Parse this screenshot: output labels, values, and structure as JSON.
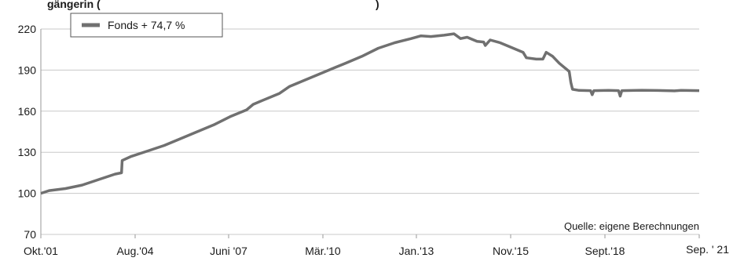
{
  "chart_data": {
    "type": "line",
    "title_partial": "gängerin (",
    "title_end": ")",
    "legend": {
      "label": "Fonds  + 74,7 %"
    },
    "source": "Quelle: eigene Berechnungen",
    "ylim": [
      70,
      220
    ],
    "y_ticks": [
      "220",
      "190",
      "160",
      "130",
      "100",
      "70"
    ],
    "x_tick_labels": [
      "Okt.'01",
      "Aug.'04",
      "Juni '07",
      "Mär.'10",
      "Jan.'13",
      "Nov.'15",
      "Sept.'18",
      "Sep. ' 21"
    ],
    "grid": true,
    "series": [
      {
        "name": "Fonds  + 74,7 %",
        "color": "#707070",
        "points": [
          [
            2001.75,
            100
          ],
          [
            2002.0,
            102
          ],
          [
            2002.5,
            103.5
          ],
          [
            2003.0,
            106
          ],
          [
            2003.5,
            110
          ],
          [
            2004.0,
            114
          ],
          [
            2004.2,
            115
          ],
          [
            2004.22,
            124
          ],
          [
            2004.5,
            127
          ],
          [
            2005.0,
            131
          ],
          [
            2005.5,
            135
          ],
          [
            2006.0,
            140
          ],
          [
            2006.5,
            145
          ],
          [
            2007.0,
            150
          ],
          [
            2007.5,
            156
          ],
          [
            2008.0,
            161
          ],
          [
            2008.2,
            165
          ],
          [
            2008.5,
            168
          ],
          [
            2009.0,
            173
          ],
          [
            2009.3,
            178
          ],
          [
            2009.7,
            182
          ],
          [
            2010.2,
            187
          ],
          [
            2010.7,
            192
          ],
          [
            2011.0,
            195
          ],
          [
            2011.5,
            200
          ],
          [
            2012.0,
            206
          ],
          [
            2012.5,
            210
          ],
          [
            2013.0,
            213
          ],
          [
            2013.3,
            215
          ],
          [
            2013.6,
            214.5
          ],
          [
            2014.0,
            215.5
          ],
          [
            2014.3,
            216.5
          ],
          [
            2014.5,
            213
          ],
          [
            2014.7,
            214
          ],
          [
            2015.0,
            211
          ],
          [
            2015.2,
            210.5
          ],
          [
            2015.25,
            208
          ],
          [
            2015.4,
            212
          ],
          [
            2015.7,
            210
          ],
          [
            2016.0,
            207
          ],
          [
            2016.4,
            203
          ],
          [
            2016.5,
            199
          ],
          [
            2016.8,
            198
          ],
          [
            2017.0,
            198
          ],
          [
            2017.1,
            203
          ],
          [
            2017.3,
            200
          ],
          [
            2017.5,
            195
          ],
          [
            2017.6,
            193
          ],
          [
            2017.8,
            189
          ],
          [
            2017.85,
            181
          ],
          [
            2017.9,
            176
          ],
          [
            2018.1,
            175.2
          ],
          [
            2018.45,
            175
          ],
          [
            2018.5,
            172
          ],
          [
            2018.55,
            175
          ],
          [
            2019.0,
            175.2
          ],
          [
            2019.3,
            175
          ],
          [
            2019.35,
            171
          ],
          [
            2019.4,
            175
          ],
          [
            2020.0,
            175.3
          ],
          [
            2020.5,
            175.1
          ],
          [
            2021.0,
            174.8
          ],
          [
            2021.2,
            175.2
          ],
          [
            2021.75,
            175
          ]
        ]
      }
    ]
  }
}
